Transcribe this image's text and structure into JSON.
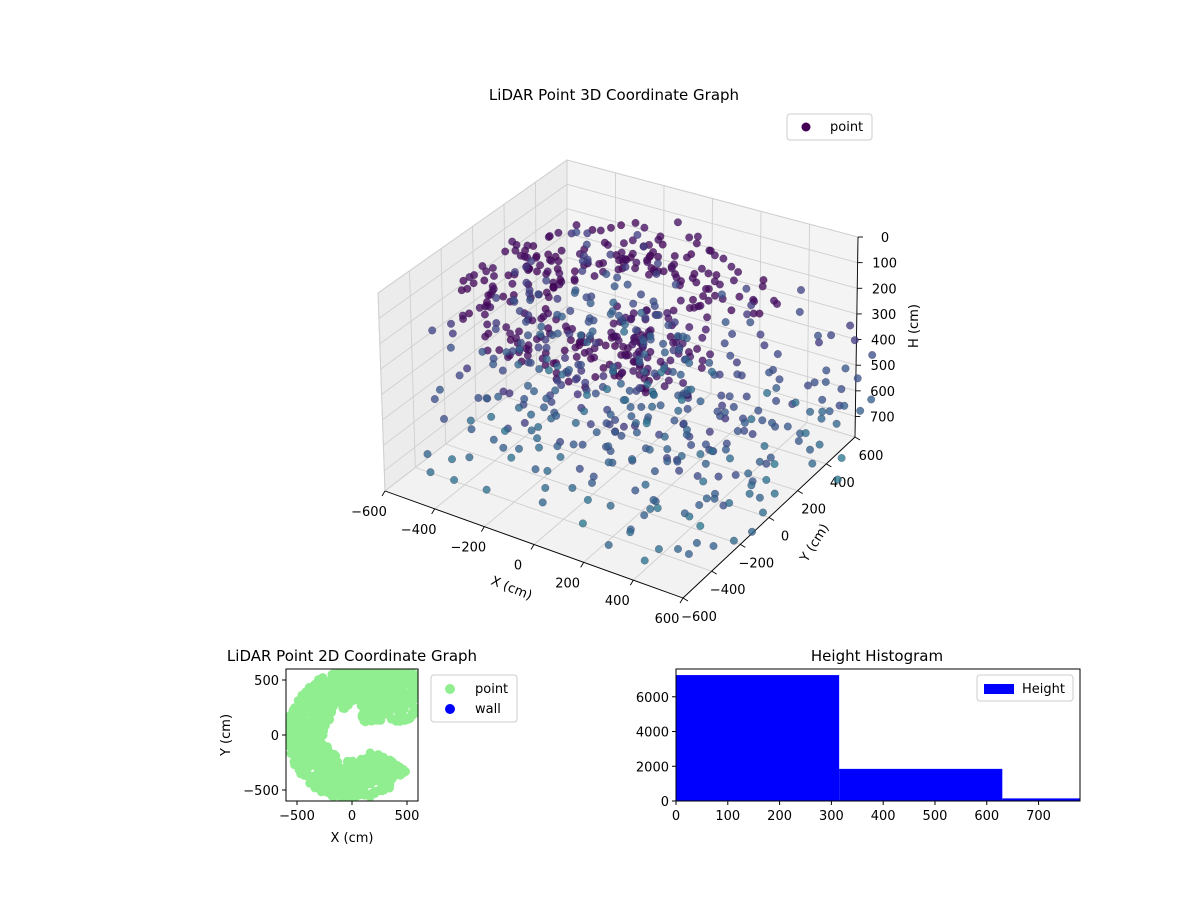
{
  "figure": {
    "background": "#ffffff"
  },
  "chart_data": [
    {
      "type": "scatter3d",
      "title": "LiDAR Point 3D Coordinate Graph",
      "xlabel": "X (cm)",
      "ylabel": "Y (cm)",
      "zlabel": "H (cm)",
      "xlim": [
        -600,
        600
      ],
      "ylim": [
        -600,
        600
      ],
      "zlim": [
        0,
        780
      ],
      "z_inverted": true,
      "xticks": [
        "−600",
        "−400",
        "−200",
        "0",
        "200",
        "400",
        "600"
      ],
      "yticks": [
        "−600",
        "−400",
        "−200",
        "0",
        "200",
        "400",
        "600"
      ],
      "zticks": [
        "0",
        "100",
        "200",
        "300",
        "400",
        "500",
        "600",
        "700"
      ],
      "grid": true,
      "colormap": "viridis",
      "legend": {
        "position": "top-right",
        "entries": [
          {
            "name": "point",
            "color": "#440154"
          }
        ]
      }
    },
    {
      "type": "scatter",
      "title": "LiDAR Point 2D Coordinate Graph",
      "xlabel": "X (cm)",
      "ylabel": "Y (cm)",
      "xlim": [
        -600,
        600
      ],
      "ylim": [
        -600,
        600
      ],
      "xticks": [
        "−500",
        "0",
        "500"
      ],
      "yticks": [
        "−500",
        "0",
        "500"
      ],
      "legend": {
        "position": "outside-right",
        "entries": [
          {
            "name": "point",
            "color": "#90ee90"
          },
          {
            "name": "wall",
            "color": "#0000ff"
          }
        ]
      }
    },
    {
      "type": "bar",
      "title": "Height Histogram",
      "bins": [
        {
          "from": 0,
          "to": 315,
          "count": 7250
        },
        {
          "from": 315,
          "to": 630,
          "count": 1850
        },
        {
          "from": 630,
          "to": 780,
          "count": 150
        }
      ],
      "xlim": [
        0,
        780
      ],
      "ylim": [
        0,
        7600
      ],
      "xticks": [
        "0",
        "100",
        "200",
        "300",
        "400",
        "500",
        "600",
        "700"
      ],
      "yticks": [
        "0",
        "2000",
        "4000",
        "6000"
      ],
      "color": "#0000ff",
      "legend": {
        "position": "top-right",
        "entries": [
          {
            "name": "Height",
            "color": "#0000ff"
          }
        ]
      }
    }
  ]
}
